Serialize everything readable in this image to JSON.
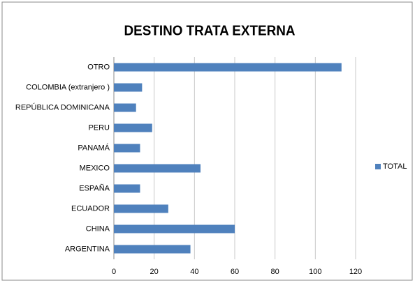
{
  "chart_data": {
    "type": "barh",
    "title": "DESTINO TRATA EXTERNA",
    "categories": [
      "OTRO",
      "COLOMBIA (extranjero )",
      "REPÚBLICA DOMINICANA",
      "PERU",
      "PANAMÁ",
      "MEXICO",
      "ESPAÑA",
      "ECUADOR",
      "CHINA",
      "ARGENTINA"
    ],
    "series": [
      {
        "name": "TOTAL",
        "color": "#4f81bd",
        "values": [
          113,
          14,
          11,
          19,
          13,
          43,
          13,
          27,
          60,
          38
        ]
      }
    ],
    "xlim": [
      0,
      120
    ],
    "xticks": [
      0,
      20,
      40,
      60,
      80,
      100,
      120
    ],
    "grid": true,
    "legend": "right"
  }
}
